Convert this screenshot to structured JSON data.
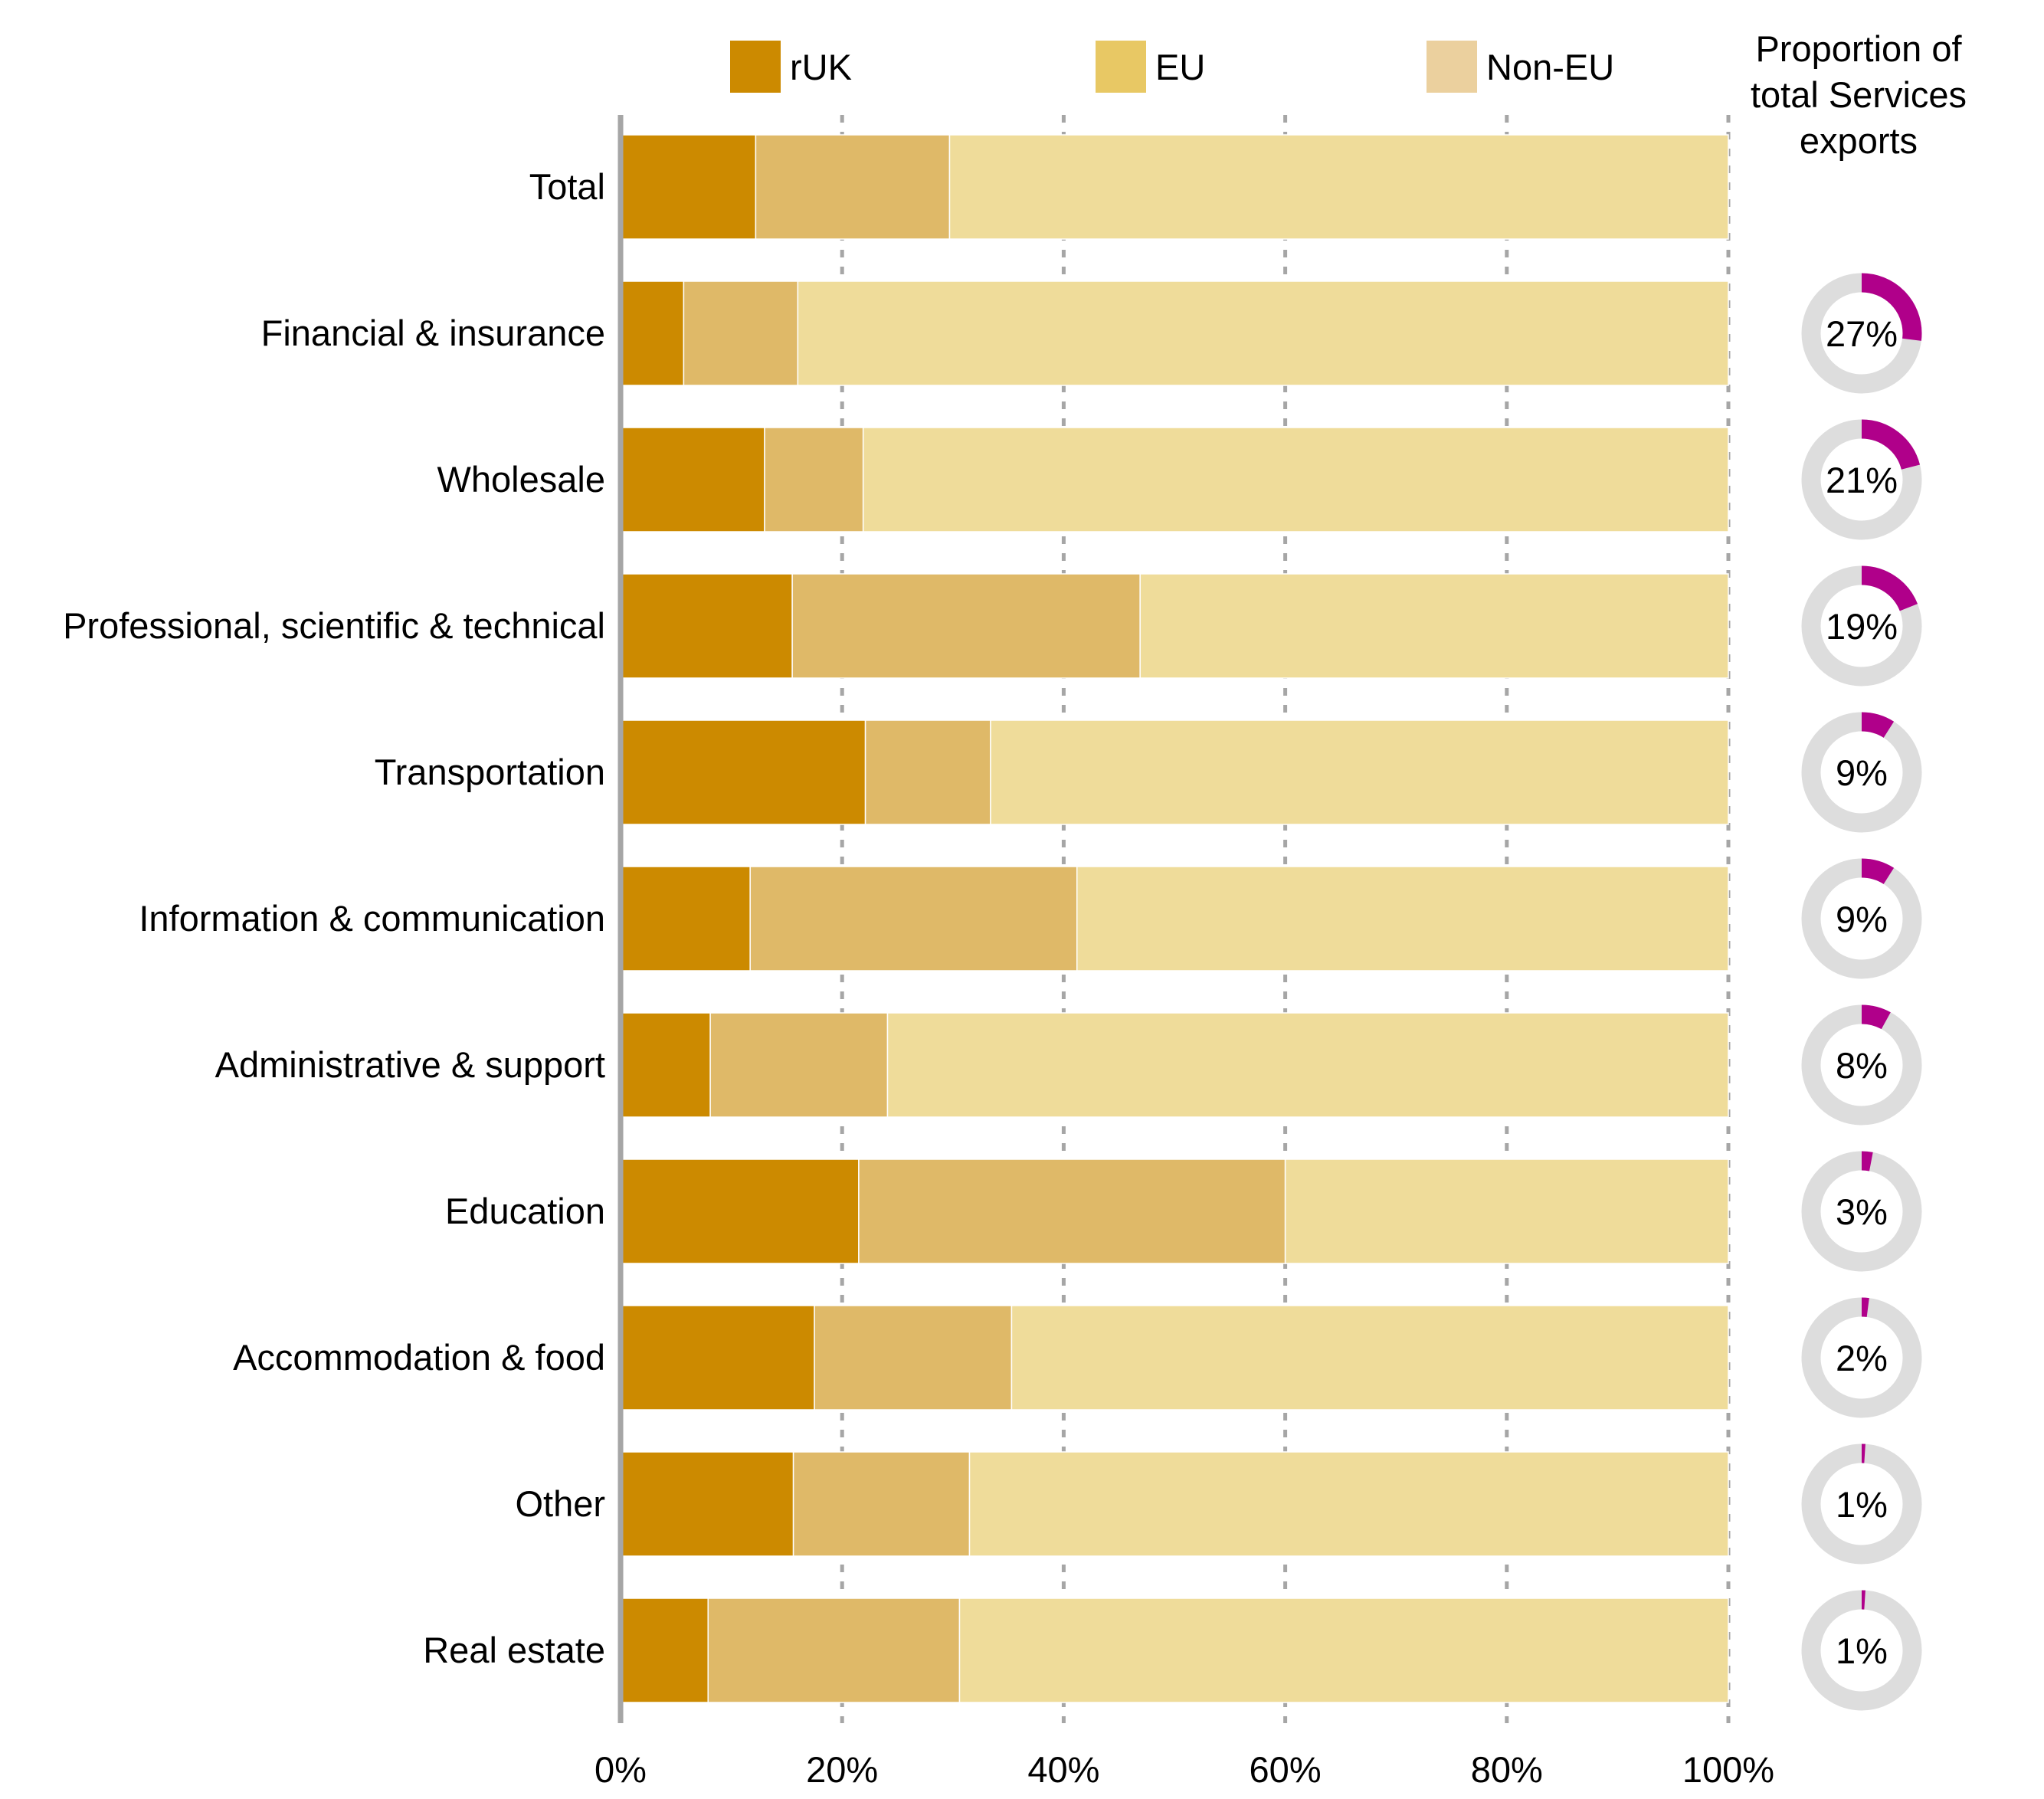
{
  "chart_data": {
    "type": "bar",
    "stacked": true,
    "orientation": "horizontal",
    "categories": [
      "Total",
      "Financial & insurance",
      "Wholesale",
      "Professional, scientific & technical",
      "Transportation",
      "Information & communication",
      "Administrative & support",
      "Education",
      "Accommodation & food",
      "Other",
      "Real estate"
    ],
    "series": [
      {
        "name": "rUK",
        "color": "#CC8A00",
        "values": [
          12.2,
          5.7,
          13.0,
          15.5,
          22.1,
          11.7,
          8.1,
          21.5,
          17.5,
          15.6,
          7.9
        ]
      },
      {
        "name": "EU",
        "color": "#DFB968",
        "values": [
          17.5,
          10.3,
          8.9,
          31.4,
          11.3,
          29.5,
          16.0,
          38.5,
          17.8,
          15.9,
          22.7
        ]
      },
      {
        "name": "Non-EU",
        "color": "#EFDC9A",
        "values": [
          70.3,
          84.0,
          78.1,
          53.1,
          66.6,
          58.8,
          75.9,
          40.0,
          64.7,
          68.5,
          69.4
        ]
      }
    ],
    "legend": [
      {
        "label": "rUK",
        "color": "#CC8A00"
      },
      {
        "label": "EU",
        "color": "#E8C864"
      },
      {
        "label": "Non-EU",
        "color": "#EBD09E"
      }
    ],
    "legend_position": "top",
    "xlim": [
      0,
      100
    ],
    "x_ticks": [
      "0%",
      "20%",
      "40%",
      "60%",
      "80%",
      "100%"
    ],
    "grid": "vertical dashed",
    "donut_title": [
      "Proportion of",
      "total Services",
      "exports"
    ],
    "donut_color": "#B0008A",
    "donut_track_color": "#DDDDDD",
    "donuts": [
      {
        "value": 27,
        "label": "27%"
      },
      {
        "value": 21,
        "label": "21%"
      },
      {
        "value": 19,
        "label": "19%"
      },
      {
        "value": 9,
        "label": "9%"
      },
      {
        "value": 9,
        "label": "9%"
      },
      {
        "value": 8,
        "label": "8%"
      },
      {
        "value": 3,
        "label": "3%"
      },
      {
        "value": 2,
        "label": "2%"
      },
      {
        "value": 1,
        "label": "1%"
      },
      {
        "value": 1,
        "label": "1%"
      }
    ]
  }
}
